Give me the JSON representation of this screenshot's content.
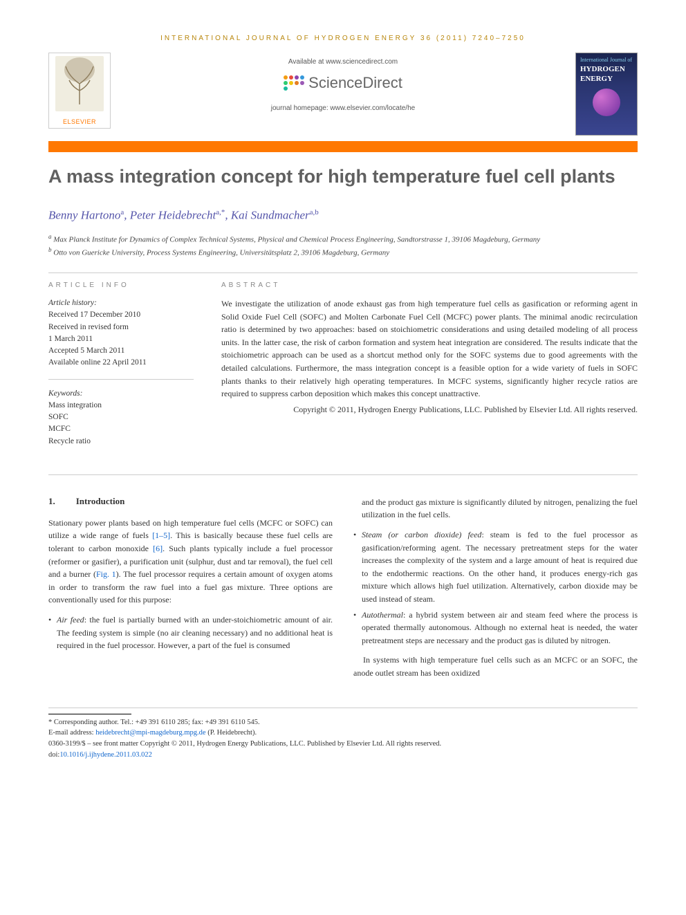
{
  "header": {
    "journal_ref": "INTERNATIONAL JOURNAL OF HYDROGEN ENERGY 36 (2011) 7240–7250",
    "available": "Available at www.sciencedirect.com",
    "sd_brand": "ScienceDirect",
    "homepage": "journal homepage: www.elsevier.com/locate/he",
    "elsevier": "ELSEVIER",
    "cover_line1": "International Journal of",
    "cover_line2": "HYDROGEN",
    "cover_line3": "ENERGY"
  },
  "colors": {
    "accent": "#ff7800",
    "title_color": "#606060",
    "author_color": "#5555aa",
    "link_color": "#1166cc",
    "gold": "#b8860b"
  },
  "sd_dots_colors": [
    "#f39c12",
    "#e74c3c",
    "#8e44ad",
    "#3498db",
    "#2ecc71",
    "#f1c40f",
    "#e67e22",
    "#9b59b6",
    "#1abc9c"
  ],
  "title": "A mass integration concept for high temperature fuel cell plants",
  "authors": {
    "a1_name": "Benny Hartono",
    "a1_sup": "a",
    "a2_name": "Peter Heidebrecht",
    "a2_sup": "a,*",
    "a3_name": "Kai Sundmacher",
    "a3_sup": "a,b"
  },
  "affiliations": {
    "a": "Max Planck Institute for Dynamics of Complex Technical Systems, Physical and Chemical Process Engineering, Sandtorstrasse 1, 39106 Magdeburg, Germany",
    "b": "Otto von Guericke University, Process Systems Engineering, Universitätsplatz 2, 39106 Magdeburg, Germany"
  },
  "info": {
    "heading": "ARTICLE INFO",
    "history_label": "Article history:",
    "received": "Received 17 December 2010",
    "revised1": "Received in revised form",
    "revised2": "1 March 2011",
    "accepted": "Accepted 5 March 2011",
    "online": "Available online 22 April 2011",
    "keywords_label": "Keywords:",
    "k1": "Mass integration",
    "k2": "SOFC",
    "k3": "MCFC",
    "k4": "Recycle ratio"
  },
  "abstract": {
    "heading": "ABSTRACT",
    "text": "We investigate the utilization of anode exhaust gas from high temperature fuel cells as gasification or reforming agent in Solid Oxide Fuel Cell (SOFC) and Molten Carbonate Fuel Cell (MCFC) power plants. The minimal anodic recirculation ratio is determined by two approaches: based on stoichiometric considerations and using detailed modeling of all process units. In the latter case, the risk of carbon formation and system heat integration are considered. The results indicate that the stoichiometric approach can be used as a shortcut method only for the SOFC systems due to good agreements with the detailed calculations. Furthermore, the mass integration concept is a feasible option for a wide variety of fuels in SOFC plants thanks to their relatively high operating temperatures. In MCFC systems, significantly higher recycle ratios are required to suppress carbon deposition which makes this concept unattractive.",
    "copyright": "Copyright © 2011, Hydrogen Energy Publications, LLC. Published by Elsevier Ltd. All rights reserved."
  },
  "intro": {
    "num": "1.",
    "heading": "Introduction",
    "p1a": "Stationary power plants based on high temperature fuel cells (MCFC or SOFC) can utilize a wide range of fuels ",
    "ref1": "[1–5]",
    "p1b": ". This is basically because these fuel cells are tolerant to carbon monoxide ",
    "ref2": "[6]",
    "p1c": ". Such plants typically include a fuel processor (reformer or gasifier), a purification unit (sulphur, dust and tar removal), the fuel cell and a burner (",
    "fig1": "Fig. 1",
    "p1d": "). The fuel processor requires a certain amount of oxygen atoms in order to transform the raw fuel into a fuel gas mixture. Three options are conventionally used for this purpose:",
    "bullet1_label": "Air feed",
    "bullet1_text": ": the fuel is partially burned with an under-stoichiometric amount of air. The feeding system is simple (no air cleaning necessary) and no additional heat is required in the fuel processor. However, a part of the fuel is consumed",
    "col2_cont": "and the product gas mixture is significantly diluted by nitrogen, penalizing the fuel utilization in the fuel cells.",
    "bullet2_label": "Steam (or carbon dioxide) feed",
    "bullet2_text": ": steam is fed to the fuel processor as gasification/reforming agent. The necessary pretreatment steps for the water increases the complexity of the system and a large amount of heat is required due to the endothermic reactions. On the other hand, it produces energy-rich gas mixture which allows high fuel utilization. Alternatively, carbon dioxide may be used instead of steam.",
    "bullet3_label": "Autothermal",
    "bullet3_text": ": a hybrid system between air and steam feed where the process is operated thermally autonomous. Although no external heat is needed, the water pretreatment steps are necessary and the product gas is diluted by nitrogen.",
    "p2": "In systems with high temperature fuel cells such as an MCFC or an SOFC, the anode outlet stream has been oxidized"
  },
  "footer": {
    "corr": "* Corresponding author. Tel.: +49 391 6110 285; fax: +49 391 6110 545.",
    "email_label": "E-mail address: ",
    "email": "heidebrecht@mpi-magdeburg.mpg.de",
    "email_suffix": " (P. Heidebrecht).",
    "line1": "0360-3199/$ – see front matter Copyright © 2011, Hydrogen Energy Publications, LLC. Published by Elsevier Ltd. All rights reserved.",
    "doi_label": "doi:",
    "doi": "10.1016/j.ijhydene.2011.03.022"
  }
}
